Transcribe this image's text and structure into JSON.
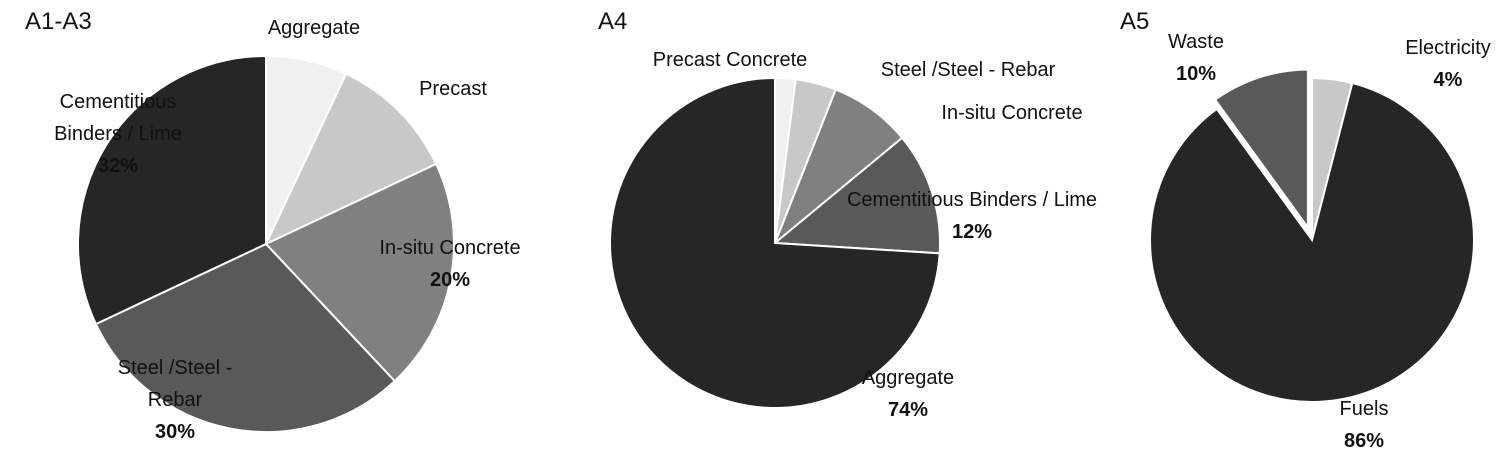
{
  "chart_data": [
    {
      "type": "pie",
      "title": "A1-A3",
      "categories": [
        "Aggregate",
        "Precast",
        "In-situ Concrete",
        "Steel /Steel - Rebar",
        "Cementitious Binders / Lime"
      ],
      "values": [
        7,
        11,
        20,
        30,
        32
      ],
      "value_labels": [
        null,
        null,
        "20%",
        "30%",
        "32%"
      ],
      "colors": [
        "#f0f0f0",
        "#c8c8c8",
        "#808080",
        "#595959",
        "#262626"
      ]
    },
    {
      "type": "pie",
      "title": "A4",
      "categories": [
        "Precast Concrete",
        "Steel /Steel - Rebar",
        "In-situ Concrete",
        "Cementitious Binders / Lime",
        "Aggregate"
      ],
      "values": [
        2,
        4,
        8,
        12,
        74
      ],
      "value_labels": [
        null,
        null,
        null,
        "12%",
        "74%"
      ],
      "colors": [
        "#f0f0f0",
        "#c8c8c8",
        "#808080",
        "#595959",
        "#262626"
      ]
    },
    {
      "type": "pie",
      "title": "A5",
      "categories": [
        "Electricity",
        "Fuels",
        "Waste"
      ],
      "values": [
        4,
        86,
        10
      ],
      "value_labels": [
        "4%",
        "86%",
        "10%"
      ],
      "colors": [
        "#c8c8c8",
        "#262626",
        "#595959"
      ]
    }
  ]
}
